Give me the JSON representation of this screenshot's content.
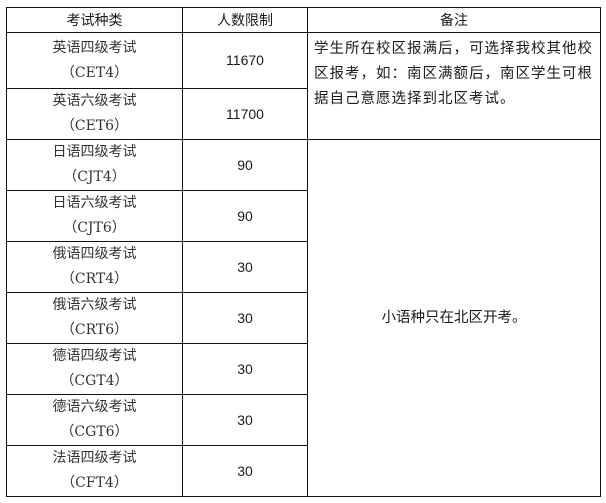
{
  "headers": [
    "考试种类",
    "人数限制",
    "备注"
  ],
  "rows": [
    {
      "name": "英语四级考试",
      "code": "（CET4）",
      "limit": "11670"
    },
    {
      "name": "英语六级考试",
      "code": "（CET6）",
      "limit": "11700"
    },
    {
      "name": "日语四级考试",
      "code": "（CJT4）",
      "limit": "90"
    },
    {
      "name": "日语六级考试",
      "code": "（CJT6）",
      "limit": "90"
    },
    {
      "name": "俄语四级考试",
      "code": "（CRT4）",
      "limit": "30"
    },
    {
      "name": "俄语六级考试",
      "code": "（CRT6）",
      "limit": "30"
    },
    {
      "name": "德语四级考试",
      "code": "（CGT4）",
      "limit": "30"
    },
    {
      "name": "德语六级考试",
      "code": "（CGT6）",
      "limit": "30"
    },
    {
      "name": "法语四级考试",
      "code": "（CFT4）",
      "limit": "30"
    }
  ],
  "notes": {
    "english": "学生所在校区报满后，可选择我校其他校区报考，如：南区满额后，南区学生可根据自己意愿选择到北区考试。",
    "minor": "小语种只在北区开考。"
  }
}
